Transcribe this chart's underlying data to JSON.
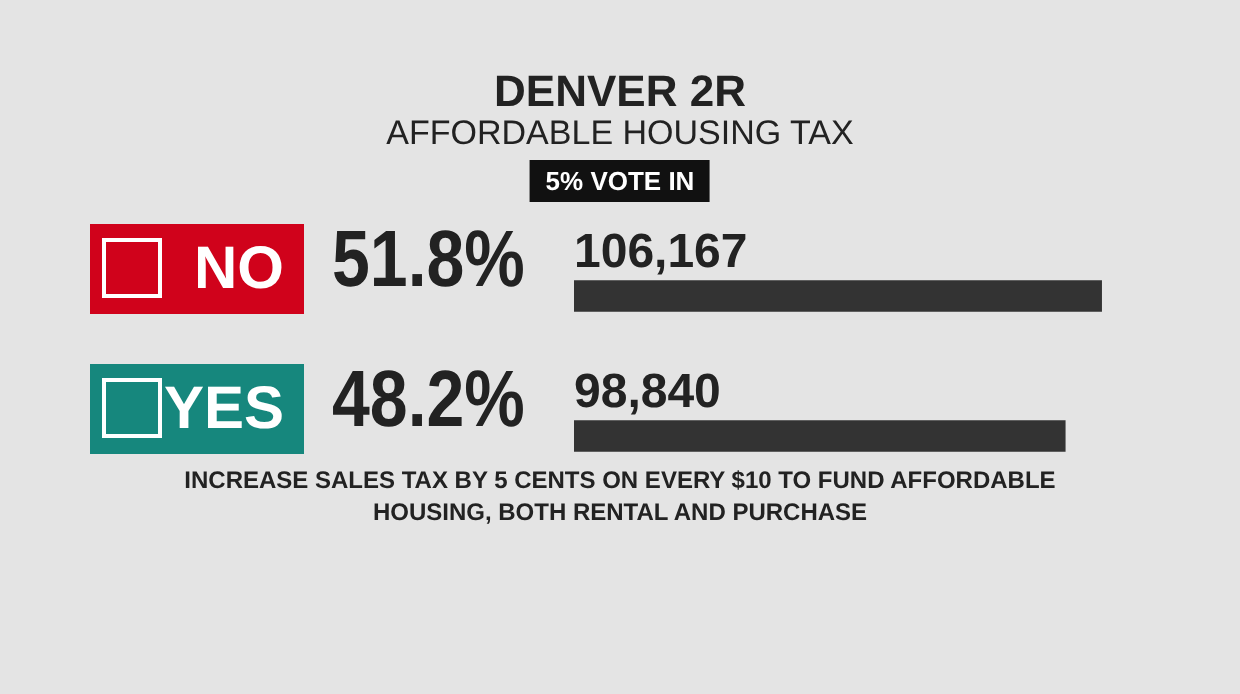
{
  "chart_data": {
    "type": "bar",
    "orientation": "horizontal",
    "title": "DENVER 2R",
    "subtitle": "AFFORDABLE HOUSING TAX",
    "categories": [
      "NO",
      "YES"
    ],
    "values": [
      106167,
      98840
    ],
    "value_labels": [
      "106,167",
      "98,840"
    ],
    "color": "#333333",
    "tick_labels": "y",
    "legend": false,
    "annotations": [
      "5% VOTE IN",
      "51.8%",
      "48.2%",
      "INCREASE SALES TAX BY 5 CENTS ON EVERY $10 TO FUND AFFORDABLE HOUSING, BOTH RENTAL AND PURCHASE"
    ]
  }
}
